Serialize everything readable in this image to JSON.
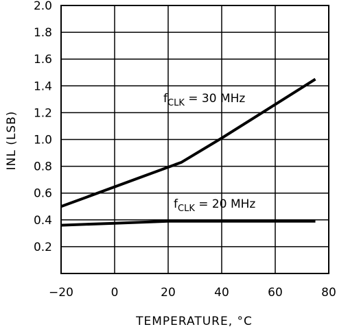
{
  "chart_data": {
    "type": "line",
    "title": "",
    "xlabel": "TEMPERATURE, °C",
    "ylabel": "INL (LSB)",
    "xlim": [
      -20,
      80
    ],
    "ylim": [
      0,
      2.0
    ],
    "xticks": [
      -20,
      0,
      20,
      40,
      60,
      80
    ],
    "yticks": [
      0.2,
      0.4,
      0.6,
      0.8,
      1.0,
      1.2,
      1.4,
      1.6,
      1.8,
      2.0
    ],
    "xtick_labels": [
      "−20",
      "0",
      "20",
      "40",
      "60",
      "80"
    ],
    "ytick_labels": [
      "0.2",
      "0.4",
      "0.6",
      "0.8",
      "1.0",
      "1.2",
      "1.4",
      "1.6",
      "1.8",
      "2.0"
    ],
    "grid": true,
    "legend": "none",
    "series": [
      {
        "label_main": "f",
        "label_sub": "CLK",
        "label_rest": " = 30 MHz",
        "x": [
          -20,
          25,
          40,
          75
        ],
        "y": [
          0.5,
          0.83,
          1.01,
          1.45
        ]
      },
      {
        "label_main": "f",
        "label_sub": "CLK",
        "label_rest": " = 20 MHz",
        "x": [
          -20,
          0,
          20,
          40,
          60,
          75
        ],
        "y": [
          0.36,
          0.375,
          0.39,
          0.39,
          0.39,
          0.39
        ]
      }
    ],
    "line_color": "#000000"
  }
}
